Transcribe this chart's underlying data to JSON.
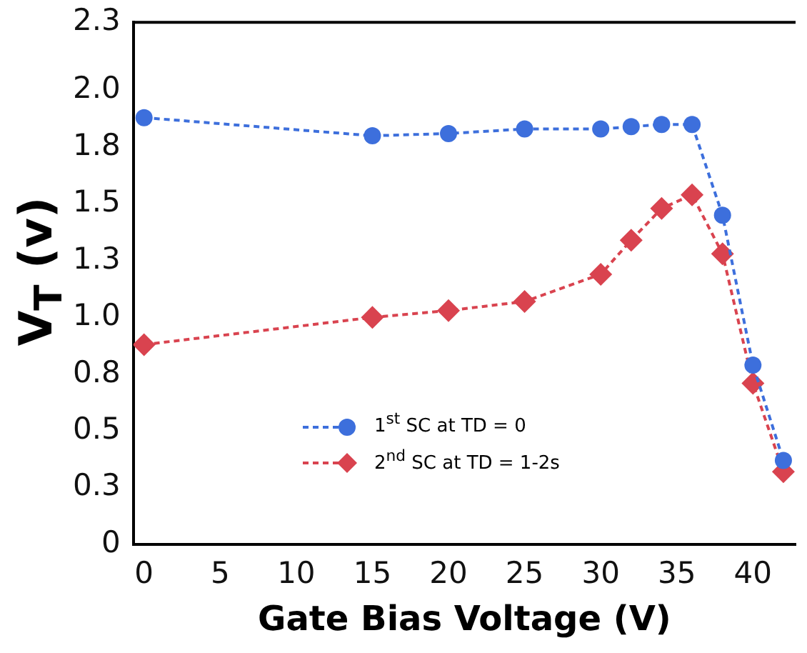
{
  "chart_data": {
    "type": "line",
    "xlabel": "Gate Bias Voltage (V)",
    "ylabel": "V$_{T}$ (v)",
    "xlim": [
      -0.7,
      42.8
    ],
    "xticks": [
      0,
      5,
      10,
      15,
      20,
      25,
      30,
      35,
      40
    ],
    "ylim": [
      0,
      2.3
    ],
    "yticks": [
      0,
      {
        "value": 0.25,
        "label": "0.3"
      },
      0.5,
      {
        "value": 0.75,
        "label": "0.8"
      },
      {
        "value": 1,
        "label": "1.0"
      },
      {
        "value": 1.25,
        "label": "1.3"
      },
      1.5,
      {
        "value": 1.75,
        "label": "1.8"
      },
      {
        "value": 2,
        "label": "2.0"
      },
      2.3
    ],
    "grid": false,
    "legend": "bottom",
    "line_style": "dashed",
    "series": [
      {
        "name": "1$^{st}$ SC at TD = 0",
        "color": "#3d6fdc",
        "marker": "circle",
        "x": [
          0,
          15,
          20,
          25,
          30,
          32,
          34,
          36,
          38,
          40,
          42
        ],
        "values": [
          1.88,
          1.8,
          1.81,
          1.83,
          1.83,
          1.84,
          1.85,
          1.85,
          1.45,
          0.79,
          0.37
        ]
      },
      {
        "name": "2$^{nd}$ SC at TD = 1-2s",
        "color": "#d9434f",
        "marker": "diamond",
        "x": [
          0,
          15,
          20,
          25,
          30,
          32,
          34,
          36,
          38,
          40,
          42
        ],
        "values": [
          0.88,
          1.0,
          1.03,
          1.07,
          1.19,
          1.34,
          1.48,
          1.54,
          1.28,
          0.71,
          0.32
        ]
      }
    ]
  }
}
